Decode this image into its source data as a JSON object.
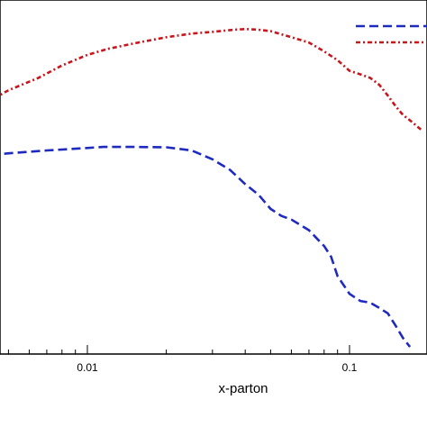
{
  "chart_data": {
    "type": "line",
    "title": "",
    "xlabel": "x-parton",
    "ylabel": "",
    "x_scale": "log",
    "xlim": [
      0.003,
      0.2
    ],
    "ylim": [
      0,
      1
    ],
    "y_ticks_labeled": false,
    "grid": false,
    "legend": {
      "placement": "top-right",
      "entries_text_visible": false
    },
    "x_tick_labels": [
      {
        "value": 0.01,
        "label": "0.01"
      },
      {
        "value": 0.1,
        "label": "0.1"
      }
    ],
    "series": [
      {
        "color": "#c8161d",
        "style": "dash-dot",
        "x": [
          0.0031,
          0.004,
          0.005,
          0.0065,
          0.008,
          0.01,
          0.012,
          0.015,
          0.02,
          0.025,
          0.03,
          0.035,
          0.04,
          0.045,
          0.05,
          0.06,
          0.07,
          0.08,
          0.09,
          0.1,
          0.11,
          0.12,
          0.13,
          0.14,
          0.15,
          0.16,
          0.17,
          0.19
        ],
        "values": [
          0.655,
          0.705,
          0.745,
          0.78,
          0.815,
          0.845,
          0.862,
          0.877,
          0.895,
          0.905,
          0.91,
          0.915,
          0.918,
          0.916,
          0.912,
          0.895,
          0.88,
          0.855,
          0.83,
          0.8,
          0.79,
          0.78,
          0.76,
          0.73,
          0.7,
          0.675,
          0.66,
          0.63
        ]
      },
      {
        "color": "#1f2bbf",
        "style": "dashed",
        "x": [
          0.003,
          0.004,
          0.005,
          0.007,
          0.009,
          0.0115,
          0.015,
          0.02,
          0.025,
          0.03,
          0.035,
          0.04,
          0.045,
          0.05,
          0.055,
          0.06,
          0.07,
          0.08,
          0.085,
          0.09,
          0.1,
          0.11,
          0.12,
          0.13,
          0.14,
          0.15,
          0.16,
          0.17
        ],
        "values": [
          0.555,
          0.56,
          0.567,
          0.575,
          0.58,
          0.585,
          0.585,
          0.584,
          0.575,
          0.55,
          0.52,
          0.48,
          0.45,
          0.41,
          0.39,
          0.38,
          0.35,
          0.305,
          0.275,
          0.22,
          0.17,
          0.15,
          0.145,
          0.13,
          0.115,
          0.08,
          0.045,
          0.02
        ]
      }
    ]
  }
}
